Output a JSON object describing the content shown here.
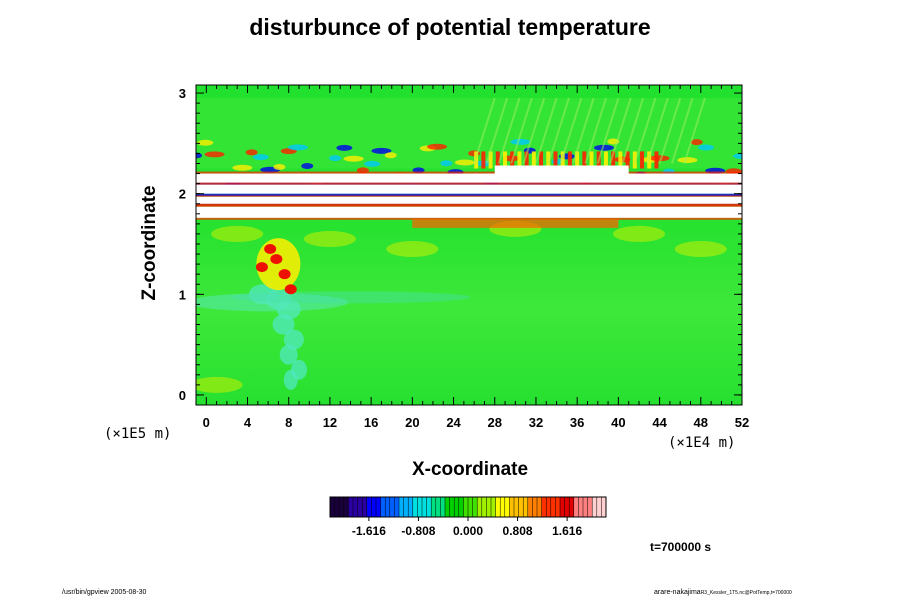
{
  "chart_data": {
    "type": "heatmap",
    "title": "disturbunce of potential temperature",
    "xlabel": "X-coordinate",
    "ylabel": "Z-coordinate",
    "x_multiplier": "(×1E4 m)",
    "y_multiplier": "(×1E5 m)",
    "xlim": [
      -1,
      52
    ],
    "ylim": [
      -0.1,
      3.08
    ],
    "x_ticks": [
      "0",
      "4",
      "8",
      "12",
      "16",
      "20",
      "24",
      "28",
      "32",
      "36",
      "40",
      "44",
      "48",
      "52"
    ],
    "y_ticks": [
      "0",
      "1",
      "2",
      "3"
    ],
    "colorbar": {
      "range": [
        -2.25,
        2.25
      ],
      "tick_labels": [
        "-1.616",
        "-0.808",
        "0.000",
        "0.808",
        "1.616"
      ],
      "tick_values": [
        -1.616,
        -0.808,
        0.0,
        0.808,
        1.616
      ],
      "colors": [
        "#1a003a",
        "#2a00a0",
        "#0000ff",
        "#0060ff",
        "#00b0ff",
        "#00e0e0",
        "#00e080",
        "#00d000",
        "#40e000",
        "#a0f000",
        "#ffff00",
        "#ffc000",
        "#ff8000",
        "#ff3000",
        "#e00000",
        "#ff8080",
        "#ffd0d0"
      ]
    },
    "field_description": {
      "background_value": 0.0,
      "saturated_bands_z": [
        1.78,
        1.93,
        2.02,
        2.12,
        2.2
      ],
      "wave_region_z": [
        2.2,
        2.9
      ],
      "cold_plume_x": [
        4,
        12
      ],
      "warm_blob": {
        "x": 7,
        "z": 1.3,
        "value": 1.8
      }
    }
  },
  "time_label": "t=700000 s",
  "footer_left": "/usr/bin/gpview 2005-08-30",
  "footer_right_main": "arare-nakajima",
  "footer_right_small": "R3_Kessler_1T5.nc@PotTemp,t=700000"
}
